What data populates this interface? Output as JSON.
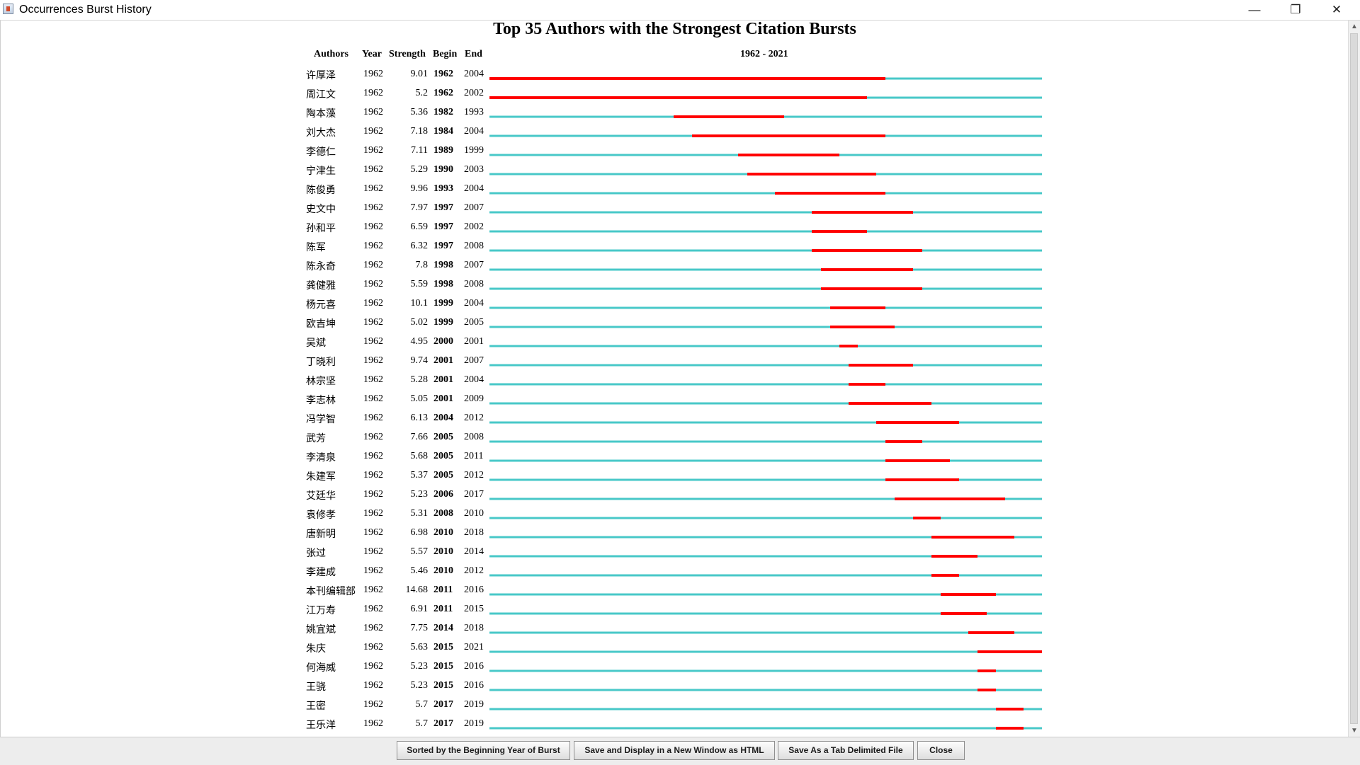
{
  "window": {
    "title": "Occurrences Burst History",
    "min_symbol": "—",
    "restore_symbol": "❐",
    "close_symbol": "✕"
  },
  "colors": {
    "burst": "#ff0000",
    "baseline": "#48c8c8"
  },
  "headers": {
    "authors": "Authors",
    "year": "Year",
    "strength": "Strength",
    "begin": "Begin",
    "end": "End"
  },
  "chart_data": {
    "type": "table",
    "title": "Top 35 Authors with the Strongest Citation Bursts",
    "range_label": "1962 - 2021",
    "range_start": 1962,
    "range_end": 2021,
    "rows": [
      {
        "author": "许厚泽",
        "year": "1962",
        "strength": "9.01",
        "begin": "1962",
        "end": "2004"
      },
      {
        "author": "周江文",
        "year": "1962",
        "strength": "5.2",
        "begin": "1962",
        "end": "2002"
      },
      {
        "author": "陶本藻",
        "year": "1962",
        "strength": "5.36",
        "begin": "1982",
        "end": "1993"
      },
      {
        "author": "刘大杰",
        "year": "1962",
        "strength": "7.18",
        "begin": "1984",
        "end": "2004"
      },
      {
        "author": "李德仁",
        "year": "1962",
        "strength": "7.11",
        "begin": "1989",
        "end": "1999"
      },
      {
        "author": "宁津生",
        "year": "1962",
        "strength": "5.29",
        "begin": "1990",
        "end": "2003"
      },
      {
        "author": "陈俊勇",
        "year": "1962",
        "strength": "9.96",
        "begin": "1993",
        "end": "2004"
      },
      {
        "author": "史文中",
        "year": "1962",
        "strength": "7.97",
        "begin": "1997",
        "end": "2007"
      },
      {
        "author": "孙和平",
        "year": "1962",
        "strength": "6.59",
        "begin": "1997",
        "end": "2002"
      },
      {
        "author": "陈军",
        "year": "1962",
        "strength": "6.32",
        "begin": "1997",
        "end": "2008"
      },
      {
        "author": "陈永奇",
        "year": "1962",
        "strength": "7.8",
        "begin": "1998",
        "end": "2007"
      },
      {
        "author": "龚健雅",
        "year": "1962",
        "strength": "5.59",
        "begin": "1998",
        "end": "2008"
      },
      {
        "author": "杨元喜",
        "year": "1962",
        "strength": "10.1",
        "begin": "1999",
        "end": "2004"
      },
      {
        "author": "欧吉坤",
        "year": "1962",
        "strength": "5.02",
        "begin": "1999",
        "end": "2005"
      },
      {
        "author": "吴斌",
        "year": "1962",
        "strength": "4.95",
        "begin": "2000",
        "end": "2001"
      },
      {
        "author": "丁晓利",
        "year": "1962",
        "strength": "9.74",
        "begin": "2001",
        "end": "2007"
      },
      {
        "author": "林宗坚",
        "year": "1962",
        "strength": "5.28",
        "begin": "2001",
        "end": "2004"
      },
      {
        "author": "李志林",
        "year": "1962",
        "strength": "5.05",
        "begin": "2001",
        "end": "2009"
      },
      {
        "author": "冯学智",
        "year": "1962",
        "strength": "6.13",
        "begin": "2004",
        "end": "2012"
      },
      {
        "author": "武芳",
        "year": "1962",
        "strength": "7.66",
        "begin": "2005",
        "end": "2008"
      },
      {
        "author": "李清泉",
        "year": "1962",
        "strength": "5.68",
        "begin": "2005",
        "end": "2011"
      },
      {
        "author": "朱建军",
        "year": "1962",
        "strength": "5.37",
        "begin": "2005",
        "end": "2012"
      },
      {
        "author": "艾廷华",
        "year": "1962",
        "strength": "5.23",
        "begin": "2006",
        "end": "2017"
      },
      {
        "author": "袁修孝",
        "year": "1962",
        "strength": "5.31",
        "begin": "2008",
        "end": "2010"
      },
      {
        "author": "唐新明",
        "year": "1962",
        "strength": "6.98",
        "begin": "2010",
        "end": "2018"
      },
      {
        "author": "张过",
        "year": "1962",
        "strength": "5.57",
        "begin": "2010",
        "end": "2014"
      },
      {
        "author": "李建成",
        "year": "1962",
        "strength": "5.46",
        "begin": "2010",
        "end": "2012"
      },
      {
        "author": "本刊编辑部",
        "year": "1962",
        "strength": "14.68",
        "begin": "2011",
        "end": "2016"
      },
      {
        "author": "江万寿",
        "year": "1962",
        "strength": "6.91",
        "begin": "2011",
        "end": "2015"
      },
      {
        "author": "姚宜斌",
        "year": "1962",
        "strength": "7.75",
        "begin": "2014",
        "end": "2018"
      },
      {
        "author": "朱庆",
        "year": "1962",
        "strength": "5.63",
        "begin": "2015",
        "end": "2021"
      },
      {
        "author": "何海威",
        "year": "1962",
        "strength": "5.23",
        "begin": "2015",
        "end": "2016"
      },
      {
        "author": "王骁",
        "year": "1962",
        "strength": "5.23",
        "begin": "2015",
        "end": "2016"
      },
      {
        "author": "王密",
        "year": "1962",
        "strength": "5.7",
        "begin": "2017",
        "end": "2019"
      },
      {
        "author": "王乐洋",
        "year": "1962",
        "strength": "5.7",
        "begin": "2017",
        "end": "2019"
      }
    ]
  },
  "buttons": {
    "sorted": "Sorted by the Beginning Year of Burst",
    "save_html": "Save and Display in a New Window as HTML",
    "save_tab": "Save As a Tab Delimited File",
    "close": "Close"
  }
}
